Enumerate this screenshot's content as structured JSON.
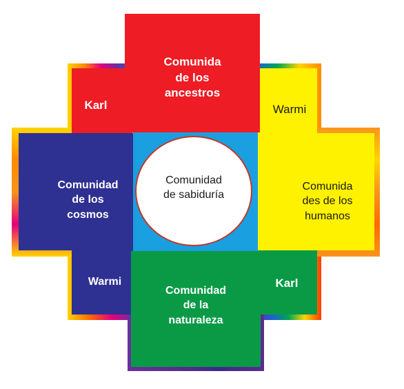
{
  "diagram": {
    "center": {
      "label": "Comunidad\nde sabiduría"
    },
    "top": {
      "label": "Comunida\nde los\nancestros"
    },
    "left": {
      "label": "Comunidad\nde los\ncosmos"
    },
    "right": {
      "label": "Comunida\ndes de los\nhumanos"
    },
    "bottom": {
      "label": "Comunidad\nde la\nnaturaleza"
    },
    "corner_top_left": {
      "label": "Karl"
    },
    "corner_top_right": {
      "label": "Warmi"
    },
    "corner_bottom_left": {
      "label": "Warmi"
    },
    "corner_bottom_right": {
      "label": "Karl"
    }
  },
  "colors": {
    "red": "#ee1c24",
    "navy": "#2e3192",
    "yellow": "#fff200",
    "green": "#0a9a46",
    "sky": "#1a9fe0",
    "purple": "#5b2d8e",
    "orange": "#f7941d",
    "circle_border": "#c0392b"
  }
}
